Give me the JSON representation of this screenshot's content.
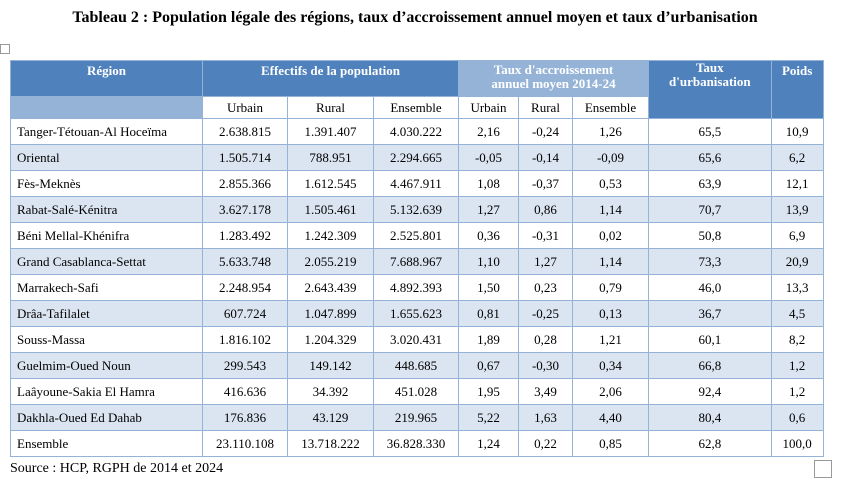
{
  "title": "Tableau 2 : Population légale des régions, taux d’accroissement annuel moyen et taux d’urbanisation",
  "table": {
    "header": {
      "region": "Région",
      "effectifs": "Effectifs de la population",
      "taux_accroissement": "Taux d'accroissement annuel moyen 2014-24",
      "taux_urbanisation": "Taux d'urbanisation",
      "poids": "Poids",
      "sub": [
        "Urbain",
        "Rural",
        "Ensemble",
        "Urbain",
        "Rural",
        "Ensemble"
      ]
    },
    "rows": [
      [
        "Tanger-Tétouan-Al Hoceïma",
        "2.638.815",
        "1.391.407",
        "4.030.222",
        "2,16",
        "-0,24",
        "1,26",
        "65,5",
        "10,9"
      ],
      [
        "Oriental",
        "1.505.714",
        "788.951",
        "2.294.665",
        "-0,05",
        "-0,14",
        "-0,09",
        "65,6",
        "6,2"
      ],
      [
        "Fès-Meknès",
        "2.855.366",
        "1.612.545",
        "4.467.911",
        "1,08",
        "-0,37",
        "0,53",
        "63,9",
        "12,1"
      ],
      [
        "Rabat-Salé-Kénitra",
        "3.627.178",
        "1.505.461",
        "5.132.639",
        "1,27",
        "0,86",
        "1,14",
        "70,7",
        "13,9"
      ],
      [
        "Béni Mellal-Khénifra",
        "1.283.492",
        "1.242.309",
        "2.525.801",
        "0,36",
        "-0,31",
        "0,02",
        "50,8",
        "6,9"
      ],
      [
        "Grand Casablanca-Settat",
        "5.633.748",
        "2.055.219",
        "7.688.967",
        "1,10",
        "1,27",
        "1,14",
        "73,3",
        "20,9"
      ],
      [
        "Marrakech-Safi",
        "2.248.954",
        "2.643.439",
        "4.892.393",
        "1,50",
        "0,23",
        "0,79",
        "46,0",
        "13,3"
      ],
      [
        "Drâa-Tafilalet",
        "607.724",
        "1.047.899",
        "1.655.623",
        "0,81",
        "-0,25",
        "0,13",
        "36,7",
        "4,5"
      ],
      [
        "Souss-Massa",
        "1.816.102",
        "1.204.329",
        "3.020.431",
        "1,89",
        "0,28",
        "1,21",
        "60,1",
        "8,2"
      ],
      [
        "Guelmim-Oued Noun",
        "299.543",
        "149.142",
        "448.685",
        "0,67",
        "-0,30",
        "0,34",
        "66,8",
        "1,2"
      ],
      [
        "Laâyoune-Sakia El Hamra",
        "416.636",
        "34.392",
        "451.028",
        "1,95",
        "3,49",
        "2,06",
        "92,4",
        "1,2"
      ],
      [
        "Dakhla-Oued Ed Dahab",
        "176.836",
        "43.129",
        "219.965",
        "5,22",
        "1,63",
        "4,40",
        "80,4",
        "0,6"
      ],
      [
        "Ensemble",
        "23.110.108",
        "13.718.222",
        "36.828.330",
        "1,24",
        "0,22",
        "0,85",
        "62,8",
        "100,0"
      ]
    ]
  },
  "source": "Source : HCP, RGPH de 2014 et 2024"
}
